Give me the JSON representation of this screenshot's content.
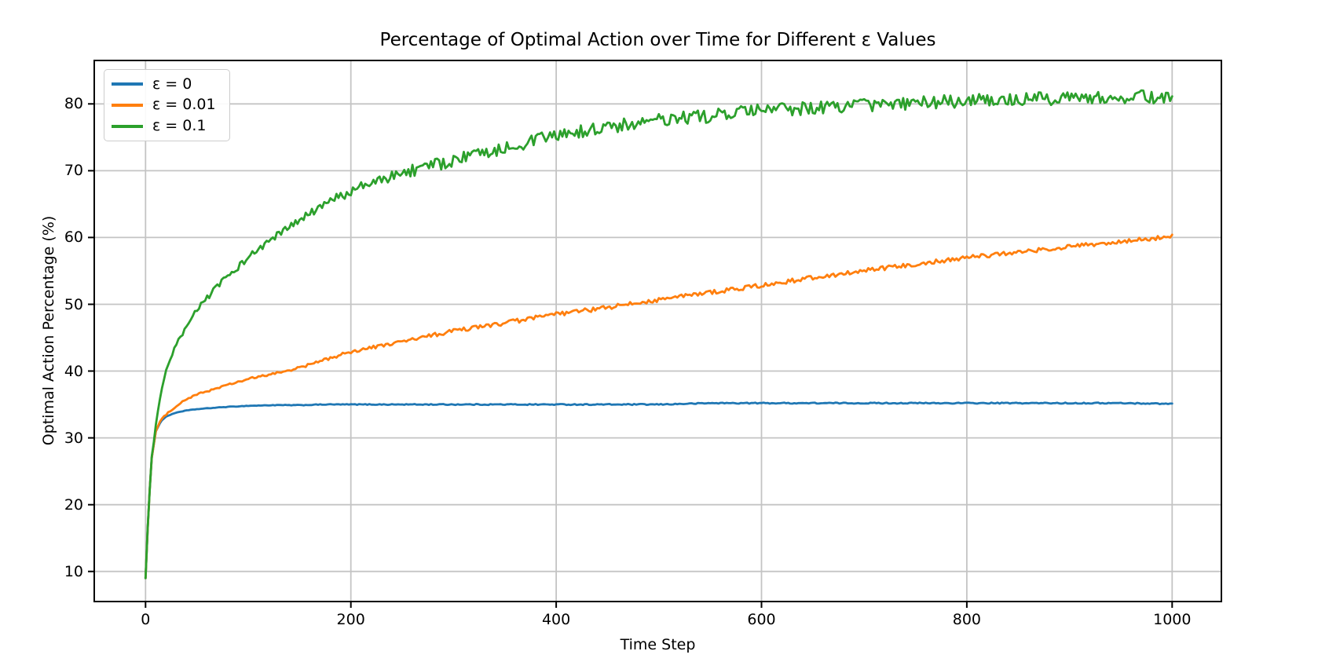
{
  "chart_data": {
    "type": "line",
    "title": "Percentage of Optimal Action over Time for Different ε Values",
    "xlabel": "Time Step",
    "ylabel": "Optimal Action Percentage (%)",
    "xlim": [
      -50,
      1048
    ],
    "ylim": [
      5.5,
      86.5
    ],
    "xticks": [
      0,
      200,
      400,
      600,
      800,
      1000
    ],
    "yticks": [
      10,
      20,
      30,
      40,
      50,
      60,
      70,
      80
    ],
    "grid": true,
    "grid_color": "#c4c4c4",
    "legend_position": "upper left",
    "background": "#ffffff",
    "x_max": 1000,
    "x": [
      0,
      3,
      6,
      10,
      15,
      20,
      30,
      40,
      50,
      75,
      100,
      125,
      150,
      175,
      200,
      250,
      300,
      350,
      400,
      450,
      500,
      550,
      600,
      650,
      700,
      750,
      800,
      850,
      900,
      950,
      1000
    ],
    "series": [
      {
        "label": "ε = 0",
        "color": "#1f77b4",
        "noise": 0.08,
        "values": [
          9,
          20,
          27,
          31,
          32.5,
          33.2,
          33.8,
          34.1,
          34.3,
          34.6,
          34.8,
          34.9,
          34.9,
          35.0,
          35.0,
          35.0,
          35.0,
          35.0,
          35.0,
          35.0,
          35.0,
          35.2,
          35.2,
          35.2,
          35.2,
          35.2,
          35.2,
          35.2,
          35.2,
          35.2,
          35.1
        ]
      },
      {
        "label": "ε = 0.01",
        "color": "#ff7f0e",
        "noise": 0.33,
        "values": [
          9,
          20,
          27,
          31,
          32.7,
          33.5,
          34.8,
          35.8,
          36.5,
          37.7,
          38.8,
          39.6,
          40.5,
          41.7,
          42.9,
          44.4,
          46.0,
          47.2,
          48.5,
          49.5,
          50.7,
          51.8,
          52.8,
          54.0,
          55.0,
          56.0,
          57.0,
          57.8,
          58.6,
          59.3,
          60.2
        ]
      },
      {
        "label": "ε = 0.1",
        "color": "#2ca02c",
        "noise": 1.0,
        "values": [
          9,
          20,
          27,
          32,
          36.5,
          40.0,
          44.0,
          46.5,
          49.3,
          53.5,
          57.0,
          60.0,
          62.5,
          65.0,
          67.0,
          69.7,
          71.5,
          73.5,
          75.2,
          76.5,
          77.5,
          78.2,
          79.0,
          79.4,
          79.8,
          80.1,
          80.5,
          80.7,
          80.9,
          81.1,
          81.0
        ]
      }
    ]
  }
}
